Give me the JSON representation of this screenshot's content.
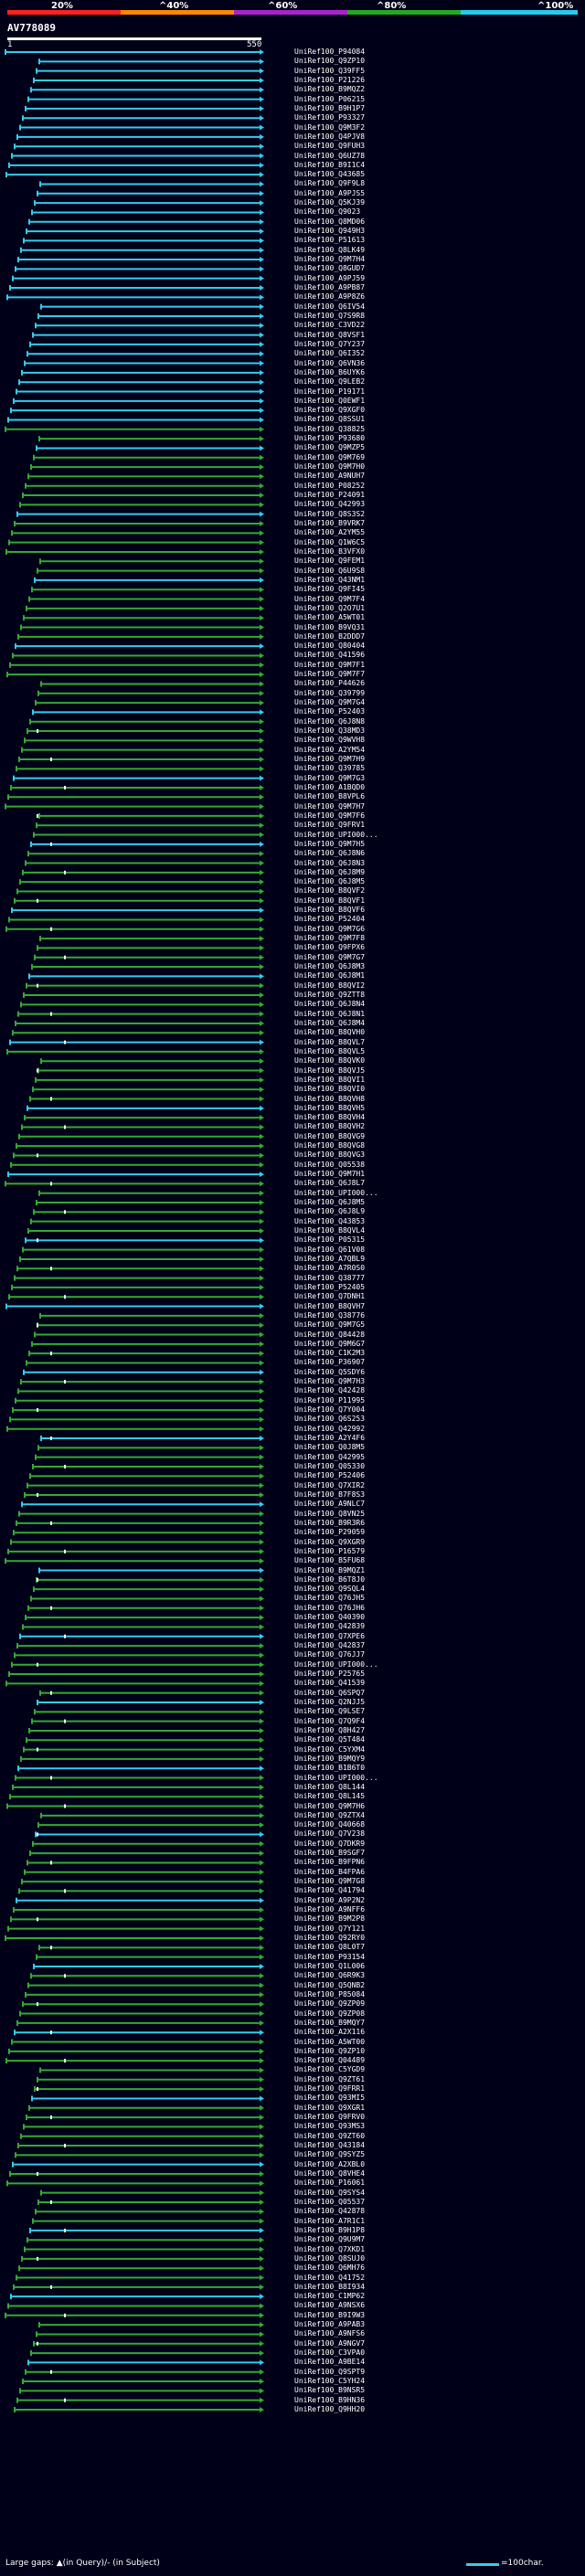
{
  "legend": {
    "labels": [
      "20%",
      "^40%",
      "^60%",
      "^80%",
      "^100%"
    ],
    "colors": [
      "#ff2020",
      "#ff8800",
      "#aa22cc",
      "#22aa22",
      "#22ccee"
    ]
  },
  "query": {
    "title": "AV778089",
    "ruler_start": "1",
    "ruler_end": "550"
  },
  "hits": [
    "UniRef100_P94084",
    "UniRef100_Q9ZP10",
    "UniRef100_Q39FF5",
    "UniRef100_P21226",
    "UniRef100_B9MQZ2",
    "UniRef100_P06215",
    "UniRef100_B9H1P7",
    "UniRef100_P93327",
    "UniRef100_Q9M3F2",
    "UniRef100_Q4PJV8",
    "UniRef100_Q9FUH3",
    "UniRef100_Q6UZ78",
    "UniRef100_B9I1C4",
    "UniRef100_Q43685",
    "UniRef100_Q9F9L8",
    "UniRef100_A9PJS5",
    "UniRef100_Q5KJ39",
    "UniRef100_Q9023",
    "UniRef100_Q8MD06",
    "UniRef100_Q949H3",
    "UniRef100_P51613",
    "UniRef100_Q8LK49",
    "UniRef100_Q9M7H4",
    "UniRef100_Q8GUD7",
    "UniRef100_A9PJ59",
    "UniRef100_A9PB87",
    "UniRef100_A9P8Z6",
    "UniRef100_Q6IV54",
    "UniRef100_Q7S9R8",
    "UniRef100_C3VD22",
    "UniRef100_Q8VSF1",
    "UniRef100_Q7Y237",
    "UniRef100_Q6I352",
    "UniRef100_Q6VN36",
    "UniRef100_B6UYK6",
    "UniRef100_Q9LEB2",
    "UniRef100_P19171",
    "UniRef100_Q0EWF1",
    "UniRef100_Q9XGF0",
    "UniRef100_Q8SSU1",
    "UniRef100_Q38825",
    "UniRef100_P93680",
    "UniRef100_Q9MZP5",
    "UniRef100_Q9M769",
    "UniRef100_Q9M7H0",
    "UniRef100_A9NUH7",
    "UniRef100_P08252",
    "UniRef100_P24091",
    "UniRef100_Q42993",
    "UniRef100_Q8S3S2",
    "UniRef100_B9VRK7",
    "UniRef100_A2YM55",
    "UniRef100_Q1W6C5",
    "UniRef100_B3VFX0",
    "UniRef100_Q9FEM1",
    "UniRef100_Q6U9S8",
    "UniRef100_Q43NM1",
    "UniRef100_Q9FI45",
    "UniRef100_Q9M7F4",
    "UniRef100_Q2O7U1",
    "UniRef100_A5WT01",
    "UniRef100_B9VQ31",
    "UniRef100_B2DDD7",
    "UniRef100_Q80404",
    "UniRef100_Q41596",
    "UniRef100_Q9M7F1",
    "UniRef100_Q9M7F7",
    "UniRef100_P44626",
    "UniRef100_Q39799",
    "UniRef100_Q9M7G4",
    "UniRef100_P52403",
    "UniRef100_Q6J8N8",
    "UniRef100_Q38MD3",
    "UniRef100_Q9WVH8",
    "UniRef100_A2YM54",
    "UniRef100_Q9M7H9",
    "UniRef100_Q39785",
    "UniRef100_Q9M7G3",
    "UniRef100_A1BQD0",
    "UniRef100_B8VPL6",
    "UniRef100_Q9M7H7",
    "UniRef100_Q9M7F6",
    "UniRef100_Q9FRV1",
    "UniRef100_UPI000...",
    "UniRef100_Q9M7H5",
    "UniRef100_Q6J8N6",
    "UniRef100_Q6J8N3",
    "UniRef100_Q6J8M9",
    "UniRef100_Q6J8M5",
    "UniRef100_B8QVF2",
    "UniRef100_B8QVF1",
    "UniRef100_B8QVF6",
    "UniRef100_P52404",
    "UniRef100_Q9M7G6",
    "UniRef100_Q9M7F8",
    "UniRef100_Q9FPX6",
    "UniRef100_Q9M7G7",
    "UniRef100_Q6J8M3",
    "UniRef100_Q6J8M1",
    "UniRef100_B8QVI2",
    "UniRef100_Q9ZTT8",
    "UniRef100_Q6J8N4",
    "UniRef100_Q6J8N1",
    "UniRef100_Q6J8M4",
    "UniRef100_B8QVH0",
    "UniRef100_B8QVL7",
    "UniRef100_B8QVL5",
    "UniRef100_B8QVK0",
    "UniRef100_B8QVJ5",
    "UniRef100_B8QVI1",
    "UniRef100_B8QVI0",
    "UniRef100_B8QVH8",
    "UniRef100_B8QVH5",
    "UniRef100_B8QVH4",
    "UniRef100_B8QVH2",
    "UniRef100_B8QVG9",
    "UniRef100_B8QVG8",
    "UniRef100_B8QVG3",
    "UniRef100_Q05538",
    "UniRef100_Q9M7H1",
    "UniRef100_Q6J8L7",
    "UniRef100_UPI000...",
    "UniRef100_Q6J8M5",
    "UniRef100_Q6J8L9",
    "UniRef100_Q43853",
    "UniRef100_B8QVL4",
    "UniRef100_P05315",
    "UniRef100_Q61V08",
    "UniRef100_A7QBL9",
    "UniRef100_A7R0S0",
    "UniRef100_Q38777",
    "UniRef100_P52405",
    "UniRef100_Q7DNH1",
    "UniRef100_B8QVH7",
    "UniRef100_Q38776",
    "UniRef100_Q9M7G5",
    "UniRef100_Q84428",
    "UniRef100_Q9M6G7",
    "UniRef100_C1K2M3",
    "UniRef100_P36907",
    "UniRef100_Q5SDY6",
    "UniRef100_Q9M7H3",
    "UniRef100_Q42428",
    "UniRef100_P11995",
    "UniRef100_Q7Y004",
    "UniRef100_Q6S253",
    "UniRef100_Q42992",
    "UniRef100_A2Y4F6",
    "UniRef100_Q0J8M5",
    "UniRef100_Q42995",
    "UniRef100_Q05330",
    "UniRef100_P52406",
    "UniRef100_Q7XIR2",
    "UniRef100_B7F8S3",
    "UniRef100_A9NLC7",
    "UniRef100_Q8VN25",
    "UniRef100_B9R3R6",
    "UniRef100_P29059",
    "UniRef100_Q9XGR9",
    "UniRef100_P16579",
    "UniRef100_B5FU68",
    "UniRef100_B9MQZ1",
    "UniRef100_B6T8J0",
    "UniRef100_Q9SQL4",
    "UniRef100_Q76JH5",
    "UniRef100_Q76JH6",
    "UniRef100_Q40390",
    "UniRef100_Q42839",
    "UniRef100_Q7XPE6",
    "UniRef100_Q42837",
    "UniRef100_Q76JJ7",
    "UniRef100_UPI000...",
    "UniRef100_P25765",
    "UniRef100_Q41539",
    "UniRef100_Q6SPQ7",
    "UniRef100_Q2NJJ5",
    "UniRef100_Q9LSE7",
    "UniRef100_Q7Q9F4",
    "UniRef100_Q8H427",
    "UniRef100_Q5T484",
    "UniRef100_C5YXM4",
    "UniRef100_B9MQY9",
    "UniRef100_B1B6T0",
    "UniRef100_UPI000...",
    "UniRef100_Q8L144",
    "UniRef100_Q8L145",
    "UniRef100_Q9M7H6",
    "UniRef100_Q9ZTX4",
    "UniRef100_Q40668",
    "UniRef100_Q7V238",
    "UniRef100_Q7DKR9",
    "UniRef100_B9SGF7",
    "UniRef100_B9FPN6",
    "UniRef100_B4FPA6",
    "UniRef100_Q9M7G8",
    "UniRef100_Q41794",
    "UniRef100_A9P2N2",
    "UniRef100_A9NFF6",
    "UniRef100_B9M2P8",
    "UniRef100_Q7Y121",
    "UniRef100_Q92RY0",
    "UniRef100_Q8L0T7",
    "UniRef100_P93154",
    "UniRef100_Q1L006",
    "UniRef100_Q6R9K3",
    "UniRef100_Q5QNB2",
    "UniRef100_P85084",
    "UniRef100_Q9ZP09",
    "UniRef100_Q9ZP08",
    "UniRef100_B9MQY7",
    "UniRef100_A2X116",
    "UniRef100_A5WT00",
    "UniRef100_Q9ZP10",
    "UniRef100_Q04489",
    "UniRef100_C5YGD9",
    "UniRef100_Q9ZT61",
    "UniRef100_Q9FRR1",
    "UniRef100_Q93MI5",
    "UniRef100_Q9XGR1",
    "UniRef100_Q9FRV0",
    "UniRef100_Q93MS3",
    "UniRef100_Q9ZT60",
    "UniRef100_Q43184",
    "UniRef100_Q9SYZ5",
    "UniRef100_A2XBL0",
    "UniRef100_Q8VHE4",
    "UniRef100_P16061",
    "UniRef100_Q9SYS4",
    "UniRef100_Q05537",
    "UniRef100_Q42878",
    "UniRef100_A7R1C1",
    "UniRef100_B9H1P8",
    "UniRef100_Q9U9M7",
    "UniRef100_Q7XKD1",
    "UniRef100_Q8SUJ0",
    "UniRef100_Q6MH76",
    "UniRef100_Q41752",
    "UniRef100_B8I934",
    "UniRef100_C1MP62",
    "UniRef100_A9NSX6",
    "UniRef100_B9I9W3",
    "UniRef100_A9PAB3",
    "UniRef100_A9NFS6",
    "UniRef100_A9NGV7",
    "UniRef100_C3VPA0",
    "UniRef100_A9BE14",
    "UniRef100_Q9SPT9",
    "UniRef100_C5YH24",
    "UniRef100_B9NSR5",
    "UniRef100_B9HN36",
    "UniRef100_Q9HH20"
  ],
  "footer": {
    "left_text": "Large gaps: ▲(in Query)/- (in Subject)",
    "scale_text": "=100char."
  }
}
